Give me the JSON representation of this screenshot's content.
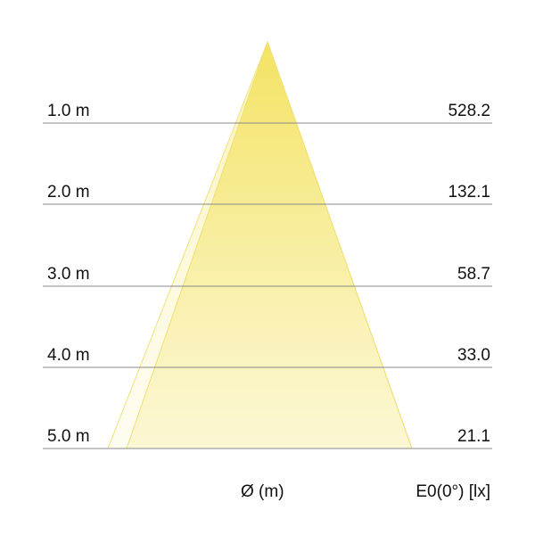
{
  "rows": [
    {
      "distance": "1.0 m",
      "illuminance": "528.2"
    },
    {
      "distance": "2.0 m",
      "illuminance": "132.1"
    },
    {
      "distance": "3.0 m",
      "illuminance": "58.7"
    },
    {
      "distance": "4.0 m",
      "illuminance": "33.0"
    },
    {
      "distance": "5.0 m",
      "illuminance": "21.1"
    }
  ],
  "footer": {
    "diameter_label": "Ø (m)",
    "illuminance_label": "E0(0°) [lx]"
  },
  "colors": {
    "cone": "#f5e66a",
    "line": "#888888"
  }
}
